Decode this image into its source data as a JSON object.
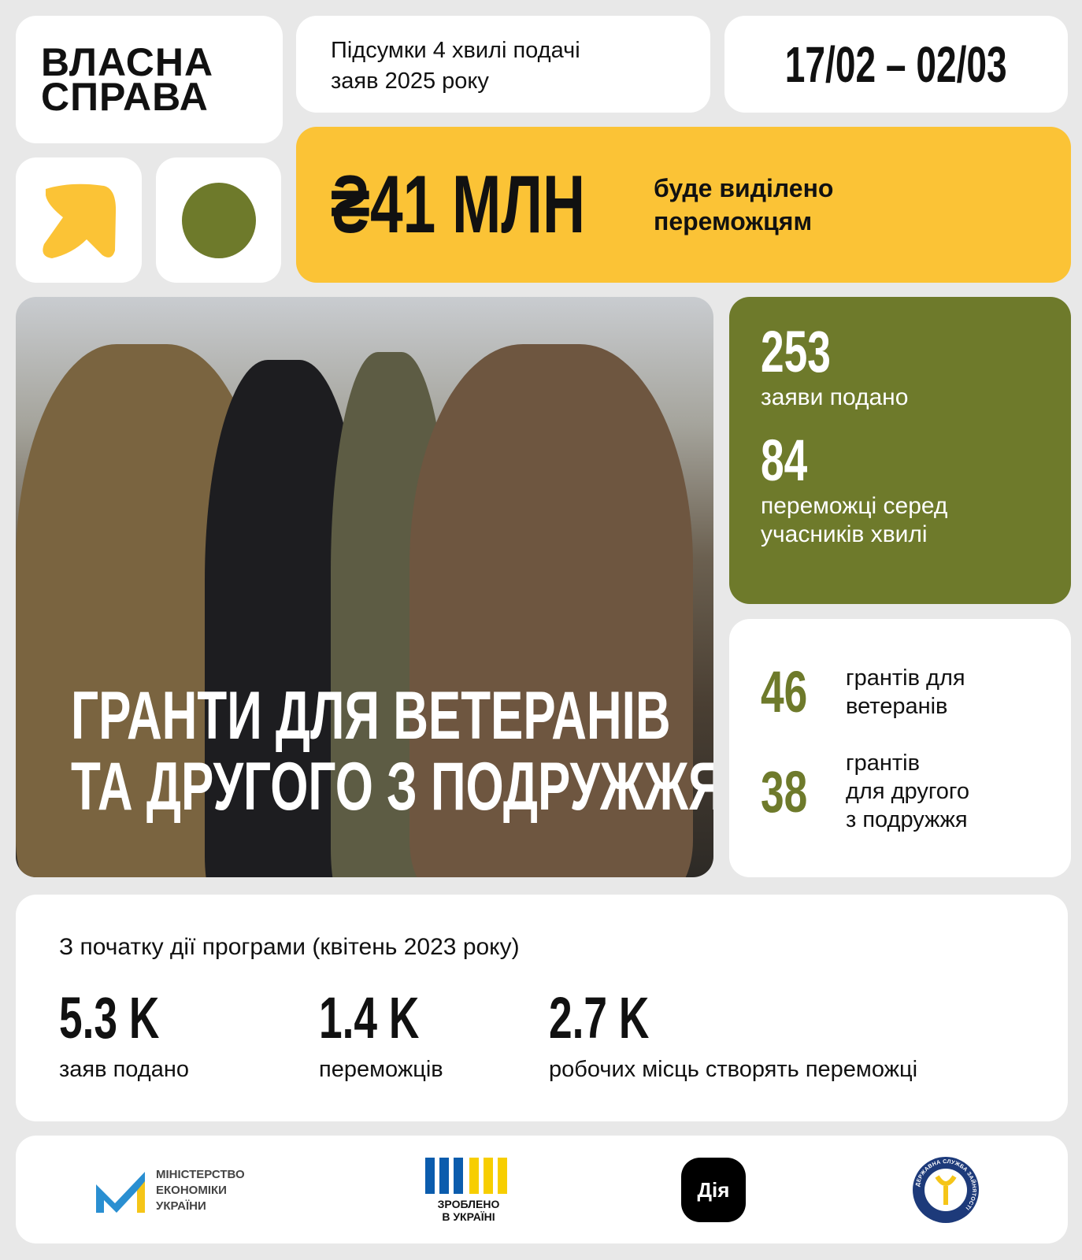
{
  "brand": {
    "line1": "ВЛАСНА",
    "line2": "СПРАВА"
  },
  "header": {
    "title_line1": "Підсумки 4 хвилі подачі",
    "title_line2": "заяв 2025 року",
    "date_range": "17/02 – 02/03"
  },
  "highlight": {
    "amount": "₴41 МЛН",
    "caption_line1": "буде виділено",
    "caption_line2": "переможцям"
  },
  "photo": {
    "headline_line1": "ГРАНТИ ДЛЯ ВЕТЕРАНІВ",
    "headline_line2": "ТА ДРУГОГО З ПОДРУЖЖЯ"
  },
  "wave": {
    "applications": "253",
    "applications_label": "заяви подано",
    "winners": "84",
    "winners_label_line1": "переможці серед",
    "winners_label_line2": "учасників хвилі"
  },
  "grants": [
    {
      "value": "46",
      "label_lines": [
        "грантів для",
        "ветеранів"
      ]
    },
    {
      "value": "38",
      "label_lines": [
        "грантів",
        "для другого",
        "з подружжя"
      ]
    }
  ],
  "program": {
    "heading": "З початку дії програми (квітень 2023 року)",
    "stats": [
      {
        "value": "5.3 K",
        "label": "заяв подано"
      },
      {
        "value": "1.4 K",
        "label": "переможців"
      },
      {
        "value": "2.7 K",
        "label": "робочих місць створять переможці"
      }
    ]
  },
  "footer": {
    "ministry": [
      "МІНІСТЕРСТВО",
      "ЕКОНОМІКИ",
      "УКРАЇНИ"
    ],
    "made_in": [
      "ЗРОБЛЕНО",
      "В УКРАЇНІ"
    ],
    "diia": "Дія",
    "employment_service": "ДЕРЖАВНА СЛУЖБА ЗАЙНЯТОСТІ"
  },
  "colors": {
    "yellow": "#fbc336",
    "olive": "#6e7a2b",
    "background": "#e8e8e8"
  }
}
